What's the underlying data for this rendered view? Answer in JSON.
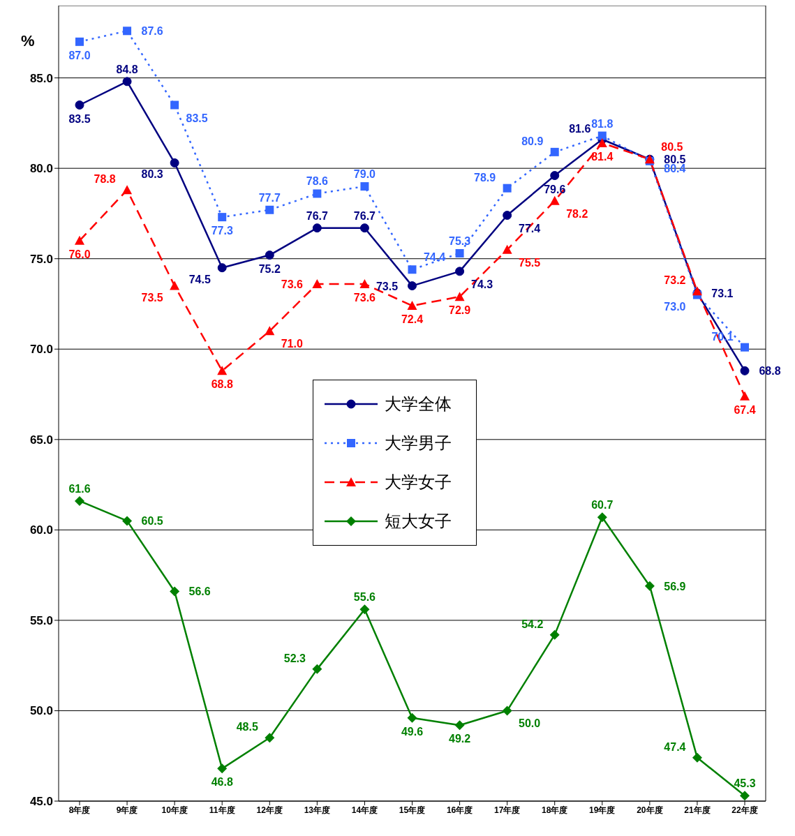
{
  "chart_data": {
    "type": "line",
    "ylabel": "%",
    "categories": [
      "8年度",
      "9年度",
      "10年度",
      "11年度",
      "12年度",
      "13年度",
      "14年度",
      "15年度",
      "16年度",
      "17年度",
      "18年度",
      "19年度",
      "20年度",
      "21年度",
      "22年度"
    ],
    "series": [
      {
        "name": "大学全体",
        "color": "#000080",
        "marker": "circle",
        "line_style": "solid",
        "values": [
          83.5,
          84.8,
          80.3,
          74.5,
          75.2,
          76.7,
          76.7,
          73.5,
          74.3,
          77.4,
          79.6,
          81.6,
          80.5,
          73.1,
          68.8
        ],
        "value_labels": [
          "83.5",
          "84.8",
          "80.3",
          "74.5",
          "75.2",
          "76.7",
          "76.7",
          "73.5",
          "74.3",
          "77.4",
          "79.6",
          "81.6",
          "80.5",
          "73.1",
          "68.8"
        ]
      },
      {
        "name": "大学男子",
        "color": "#3366ff",
        "marker": "square",
        "line_style": "dotted",
        "values": [
          87.0,
          87.6,
          83.5,
          77.3,
          77.7,
          78.6,
          79.0,
          74.4,
          75.3,
          78.9,
          80.9,
          81.8,
          80.4,
          73.0,
          70.1
        ],
        "value_labels": [
          "87.0",
          "87.6",
          "83.5",
          "77.3",
          "77.7",
          "78.6",
          "79.0",
          "74.4",
          "75.3",
          "78.9",
          "80.9",
          "81.8",
          "80.4",
          "73.0",
          "70.1"
        ]
      },
      {
        "name": "大学女子",
        "color": "#ff0000",
        "marker": "triangle",
        "line_style": "dashed",
        "values": [
          76.0,
          78.8,
          73.5,
          68.8,
          71.0,
          73.6,
          73.6,
          72.4,
          72.9,
          75.5,
          78.2,
          81.4,
          80.5,
          73.2,
          67.4
        ],
        "value_labels": [
          "76.0",
          "78.8",
          "73.5",
          "68.8",
          "71.0",
          "73.6",
          "73.6",
          "72.4",
          "72.9",
          "75.5",
          "78.2",
          "81.4",
          "80.5",
          "73.2",
          "67.4"
        ]
      },
      {
        "name": "短大女子",
        "color": "#008000",
        "marker": "diamond",
        "line_style": "solid",
        "values": [
          61.6,
          60.5,
          56.6,
          46.8,
          48.5,
          52.3,
          55.6,
          49.6,
          49.2,
          50.0,
          54.2,
          60.7,
          56.9,
          47.4,
          45.3
        ],
        "value_labels": [
          "61.6",
          "60.5",
          "56.6",
          "46.8",
          "48.5",
          "52.3",
          "55.6",
          "49.6",
          "49.2",
          "50.0",
          "54.2",
          "60.7",
          "56.9",
          "47.4",
          "45.3"
        ]
      }
    ],
    "ylim": [
      45,
      89
    ],
    "yticks": [
      {
        "value": 45,
        "label": "45.0"
      },
      {
        "value": 50,
        "label": "50.0"
      },
      {
        "value": 55,
        "label": "55.0"
      },
      {
        "value": 60,
        "label": "60.0"
      },
      {
        "value": 65,
        "label": "65.0"
      },
      {
        "value": 70,
        "label": "70.0"
      },
      {
        "value": 75,
        "label": "75.0"
      },
      {
        "value": 80,
        "label": "80.0"
      },
      {
        "value": 85,
        "label": "85.0"
      }
    ],
    "grid": "y",
    "legend": "center"
  }
}
